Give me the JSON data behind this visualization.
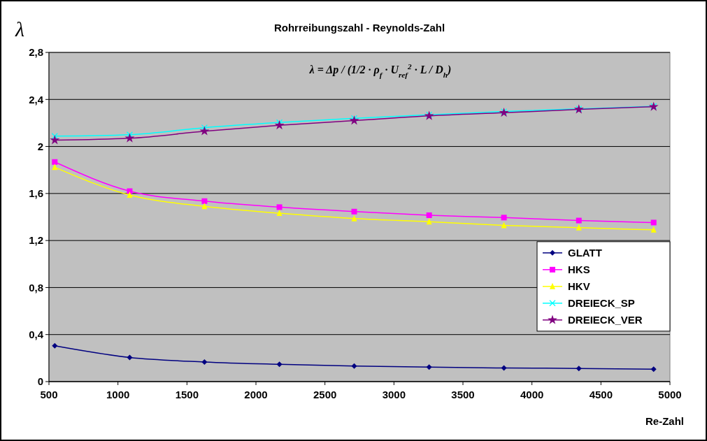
{
  "chart_data": {
    "type": "line",
    "title": "Rohrreibungszahl - Reynolds-Zahl",
    "xlabel": "Re-Zahl",
    "ylabel": "λ",
    "annotations": [
      "λ = Δp / (1/2 · ρ$_{f}$ · U$_{ref}$$^{2}$ · L / D$_{h}$)"
    ],
    "x": [
      542,
      1085,
      1627,
      2170,
      2712,
      3255,
      3797,
      4340,
      4882
    ],
    "series": [
      {
        "name": "GLATT",
        "color": "#000080",
        "marker": "diamond",
        "values": [
          0.304,
          0.205,
          0.167,
          0.147,
          0.133,
          0.123,
          0.116,
          0.112,
          0.105
        ]
      },
      {
        "name": "HKS",
        "color": "#ff00ff",
        "marker": "square",
        "values": [
          1.868,
          1.62,
          1.535,
          1.484,
          1.446,
          1.415,
          1.395,
          1.37,
          1.353
        ]
      },
      {
        "name": "HKV",
        "color": "#ffff00",
        "marker": "triangle",
        "values": [
          1.823,
          1.587,
          1.49,
          1.432,
          1.387,
          1.36,
          1.329,
          1.309,
          1.291
        ]
      },
      {
        "name": "DREIECK_SP",
        "color": "#00ffff",
        "marker": "cross",
        "values": [
          2.088,
          2.1,
          2.16,
          2.204,
          2.24,
          2.27,
          2.297,
          2.32,
          2.342
        ]
      },
      {
        "name": "DREIECK_VER",
        "color": "#800080",
        "marker": "star",
        "values": [
          2.054,
          2.07,
          2.13,
          2.18,
          2.22,
          2.26,
          2.287,
          2.315,
          2.338
        ]
      }
    ],
    "xlim": [
      500,
      5000
    ],
    "xticks": [
      500,
      1000,
      1500,
      2000,
      2500,
      3000,
      3500,
      4000,
      4500,
      5000
    ],
    "ylim": [
      0,
      2.8
    ],
    "yticks": [
      0,
      {
        "value": 0.4,
        "label": "0,4"
      },
      {
        "value": 0.8,
        "label": "0,8"
      },
      {
        "value": 1.2,
        "label": "1,2"
      },
      {
        "value": 1.6,
        "label": "1,6"
      },
      2,
      {
        "value": 2.4,
        "label": "2,4"
      },
      {
        "value": 2.8,
        "label": "2,8"
      }
    ],
    "grid": "y",
    "legend": "right",
    "line_style": "solid"
  }
}
